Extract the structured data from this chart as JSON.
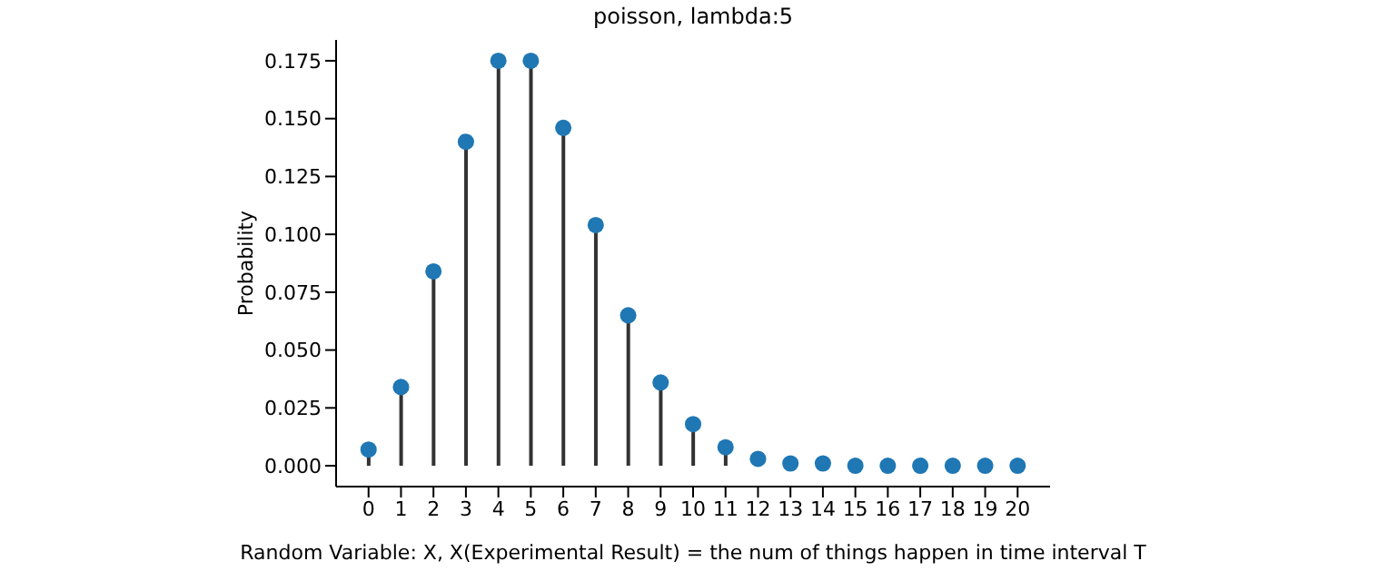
{
  "chart_data": {
    "type": "lollipop",
    "title": "poisson, lambda:5",
    "xlabel": "Random Variable: X, X(Experimental Result) = the num of things happen in time interval T",
    "ylabel": "Probability",
    "x": [
      0,
      1,
      2,
      3,
      4,
      5,
      6,
      7,
      8,
      9,
      10,
      11,
      12,
      13,
      14,
      15,
      16,
      17,
      18,
      19,
      20
    ],
    "series": [
      {
        "color": "#1f77b4",
        "values": [
          0.007,
          0.034,
          0.084,
          0.14,
          0.175,
          0.175,
          0.146,
          0.104,
          0.065,
          0.036,
          0.018,
          0.008,
          0.003,
          0.001,
          0.001,
          0.0,
          0.0,
          0.0,
          0.0,
          0.0,
          0.0
        ]
      }
    ],
    "xlim": [
      -1,
      21
    ],
    "xticks": [
      0,
      1,
      2,
      3,
      4,
      5,
      6,
      7,
      8,
      9,
      10,
      11,
      12,
      13,
      14,
      15,
      16,
      17,
      18,
      19,
      20
    ],
    "ylim": [
      -0.009,
      0.184
    ],
    "yticks": [
      {
        "value": 0,
        "label": "0.000"
      },
      {
        "value": 0.025,
        "label": "0.025"
      },
      {
        "value": 0.05,
        "label": "0.050"
      },
      {
        "value": 0.075,
        "label": "0.075"
      },
      {
        "value": 0.1,
        "label": "0.100"
      },
      {
        "value": 0.125,
        "label": "0.125"
      },
      {
        "value": 0.15,
        "label": "0.150"
      },
      {
        "value": 0.175,
        "label": "0.175"
      }
    ],
    "marker": "circle",
    "grid": false
  }
}
